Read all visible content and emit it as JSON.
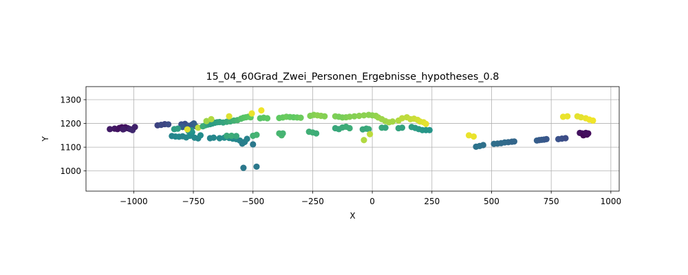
{
  "chart_data": {
    "type": "scatter",
    "title": "15_04_60Grad_Zwei_Personen_Ergebnisse_hypotheses_0.8",
    "xlabel": "X",
    "ylabel": "Y",
    "xlim": [
      -1200,
      1035
    ],
    "ylim": [
      915,
      1355
    ],
    "xticks": [
      -1000,
      -750,
      -500,
      -250,
      0,
      250,
      500,
      750,
      1000
    ],
    "xtick_labels": [
      "−1000",
      "−750",
      "−500",
      "−250",
      "0",
      "250",
      "500",
      "750",
      "1000"
    ],
    "yticks": [
      1000,
      1100,
      1200,
      1300
    ],
    "ytick_labels": [
      "1000",
      "1100",
      "1200",
      "1300"
    ],
    "grid": true,
    "colormap": "viridis",
    "colormap_stops": [
      "#440154",
      "#3b528b",
      "#21918c",
      "#5ec962",
      "#fde725"
    ],
    "points": [
      {
        "x": -1100,
        "y": 1176,
        "c": 0.08
      },
      {
        "x": -1080,
        "y": 1178,
        "c": 0.07
      },
      {
        "x": -1068,
        "y": 1176,
        "c": 0.06
      },
      {
        "x": -1060,
        "y": 1181,
        "c": 0.05
      },
      {
        "x": -1050,
        "y": 1184,
        "c": 0.04
      },
      {
        "x": -1042,
        "y": 1176,
        "c": 0.06
      },
      {
        "x": -1035,
        "y": 1184,
        "c": 0.05
      },
      {
        "x": -1025,
        "y": 1180,
        "c": 0.07
      },
      {
        "x": -1015,
        "y": 1176,
        "c": 0.1
      },
      {
        "x": -1005,
        "y": 1172,
        "c": 0.12
      },
      {
        "x": -995,
        "y": 1185,
        "c": 0.1
      },
      {
        "x": -1045,
        "y": 1175,
        "c": 0.09
      },
      {
        "x": -900,
        "y": 1192,
        "c": 0.2
      },
      {
        "x": -885,
        "y": 1194,
        "c": 0.22
      },
      {
        "x": -870,
        "y": 1197,
        "c": 0.21
      },
      {
        "x": -855,
        "y": 1196,
        "c": 0.23
      },
      {
        "x": -800,
        "y": 1196,
        "c": 0.25
      },
      {
        "x": -785,
        "y": 1198,
        "c": 0.24
      },
      {
        "x": -770,
        "y": 1190,
        "c": 0.27
      },
      {
        "x": -755,
        "y": 1195,
        "c": 0.28
      },
      {
        "x": -748,
        "y": 1200,
        "c": 0.3
      },
      {
        "x": -740,
        "y": 1188,
        "c": 0.32
      },
      {
        "x": -795,
        "y": 1185,
        "c": 0.3
      },
      {
        "x": -840,
        "y": 1147,
        "c": 0.45
      },
      {
        "x": -825,
        "y": 1145,
        "c": 0.46
      },
      {
        "x": -810,
        "y": 1144,
        "c": 0.47
      },
      {
        "x": -795,
        "y": 1146,
        "c": 0.45
      },
      {
        "x": -780,
        "y": 1141,
        "c": 0.46
      },
      {
        "x": -765,
        "y": 1148,
        "c": 0.48
      },
      {
        "x": -755,
        "y": 1163,
        "c": 0.5
      },
      {
        "x": -745,
        "y": 1140,
        "c": 0.47
      },
      {
        "x": -730,
        "y": 1137,
        "c": 0.46
      },
      {
        "x": -720,
        "y": 1150,
        "c": 0.48
      },
      {
        "x": -770,
        "y": 1168,
        "c": 0.5
      },
      {
        "x": -760,
        "y": 1172,
        "c": 0.52
      },
      {
        "x": -830,
        "y": 1176,
        "c": 0.55
      },
      {
        "x": -815,
        "y": 1178,
        "c": 0.56
      },
      {
        "x": -775,
        "y": 1175,
        "c": 0.95
      },
      {
        "x": -730,
        "y": 1182,
        "c": 0.9
      },
      {
        "x": -710,
        "y": 1188,
        "c": 0.62
      },
      {
        "x": -700,
        "y": 1192,
        "c": 0.62
      },
      {
        "x": -690,
        "y": 1195,
        "c": 0.58
      },
      {
        "x": -680,
        "y": 1197,
        "c": 0.56
      },
      {
        "x": -670,
        "y": 1200,
        "c": 0.55
      },
      {
        "x": -660,
        "y": 1203,
        "c": 0.55
      },
      {
        "x": -650,
        "y": 1205,
        "c": 0.56
      },
      {
        "x": -640,
        "y": 1206,
        "c": 0.57
      },
      {
        "x": -625,
        "y": 1204,
        "c": 0.58
      },
      {
        "x": -610,
        "y": 1207,
        "c": 0.6
      },
      {
        "x": -595,
        "y": 1209,
        "c": 0.62
      },
      {
        "x": -580,
        "y": 1212,
        "c": 0.64
      },
      {
        "x": -565,
        "y": 1214,
        "c": 0.66
      },
      {
        "x": -550,
        "y": 1220,
        "c": 0.7
      },
      {
        "x": -540,
        "y": 1224,
        "c": 0.72
      },
      {
        "x": -530,
        "y": 1226,
        "c": 0.73
      },
      {
        "x": -520,
        "y": 1228,
        "c": 0.74
      },
      {
        "x": -510,
        "y": 1226,
        "c": 0.75
      },
      {
        "x": -695,
        "y": 1210,
        "c": 0.85
      },
      {
        "x": -675,
        "y": 1218,
        "c": 0.88
      },
      {
        "x": -600,
        "y": 1230,
        "c": 0.95
      },
      {
        "x": -505,
        "y": 1242,
        "c": 0.97
      },
      {
        "x": -465,
        "y": 1255,
        "c": 0.98
      },
      {
        "x": -680,
        "y": 1138,
        "c": 0.45
      },
      {
        "x": -665,
        "y": 1140,
        "c": 0.46
      },
      {
        "x": -640,
        "y": 1138,
        "c": 0.47
      },
      {
        "x": -620,
        "y": 1140,
        "c": 0.48
      },
      {
        "x": -600,
        "y": 1139,
        "c": 0.48
      },
      {
        "x": -585,
        "y": 1136,
        "c": 0.47
      },
      {
        "x": -570,
        "y": 1134,
        "c": 0.46
      },
      {
        "x": -555,
        "y": 1128,
        "c": 0.45
      },
      {
        "x": -545,
        "y": 1115,
        "c": 0.42
      },
      {
        "x": -535,
        "y": 1122,
        "c": 0.43
      },
      {
        "x": -525,
        "y": 1135,
        "c": 0.44
      },
      {
        "x": -500,
        "y": 1112,
        "c": 0.4
      },
      {
        "x": -540,
        "y": 1013,
        "c": 0.4
      },
      {
        "x": -485,
        "y": 1018,
        "c": 0.4
      },
      {
        "x": -610,
        "y": 1148,
        "c": 0.6
      },
      {
        "x": -590,
        "y": 1148,
        "c": 0.62
      },
      {
        "x": -570,
        "y": 1147,
        "c": 0.6
      },
      {
        "x": -500,
        "y": 1148,
        "c": 0.64
      },
      {
        "x": -485,
        "y": 1152,
        "c": 0.65
      },
      {
        "x": -390,
        "y": 1158,
        "c": 0.66
      },
      {
        "x": -380,
        "y": 1150,
        "c": 0.67
      },
      {
        "x": -375,
        "y": 1158,
        "c": 0.65
      },
      {
        "x": -470,
        "y": 1222,
        "c": 0.72
      },
      {
        "x": -455,
        "y": 1224,
        "c": 0.73
      },
      {
        "x": -440,
        "y": 1222,
        "c": 0.74
      },
      {
        "x": -390,
        "y": 1223,
        "c": 0.75
      },
      {
        "x": -375,
        "y": 1225,
        "c": 0.76
      },
      {
        "x": -360,
        "y": 1228,
        "c": 0.77
      },
      {
        "x": -345,
        "y": 1227,
        "c": 0.76
      },
      {
        "x": -330,
        "y": 1226,
        "c": 0.75
      },
      {
        "x": -315,
        "y": 1225,
        "c": 0.76
      },
      {
        "x": -300,
        "y": 1224,
        "c": 0.77
      },
      {
        "x": -260,
        "y": 1232,
        "c": 0.8
      },
      {
        "x": -245,
        "y": 1236,
        "c": 0.81
      },
      {
        "x": -230,
        "y": 1234,
        "c": 0.82
      },
      {
        "x": -215,
        "y": 1232,
        "c": 0.82
      },
      {
        "x": -200,
        "y": 1230,
        "c": 0.81
      },
      {
        "x": -155,
        "y": 1230,
        "c": 0.8
      },
      {
        "x": -140,
        "y": 1228,
        "c": 0.79
      },
      {
        "x": -125,
        "y": 1225,
        "c": 0.79
      },
      {
        "x": -110,
        "y": 1226,
        "c": 0.8
      },
      {
        "x": -95,
        "y": 1228,
        "c": 0.81
      },
      {
        "x": -75,
        "y": 1230,
        "c": 0.81
      },
      {
        "x": -55,
        "y": 1232,
        "c": 0.82
      },
      {
        "x": -35,
        "y": 1234,
        "c": 0.82
      },
      {
        "x": -15,
        "y": 1236,
        "c": 0.82
      },
      {
        "x": 0,
        "y": 1234,
        "c": 0.82
      },
      {
        "x": 15,
        "y": 1232,
        "c": 0.83
      },
      {
        "x": 25,
        "y": 1225,
        "c": 0.84
      },
      {
        "x": 40,
        "y": 1218,
        "c": 0.85
      },
      {
        "x": 55,
        "y": 1210,
        "c": 0.85
      },
      {
        "x": 70,
        "y": 1205,
        "c": 0.86
      },
      {
        "x": 85,
        "y": 1208,
        "c": 0.86
      },
      {
        "x": -265,
        "y": 1165,
        "c": 0.63
      },
      {
        "x": -250,
        "y": 1162,
        "c": 0.63
      },
      {
        "x": -235,
        "y": 1158,
        "c": 0.62
      },
      {
        "x": -155,
        "y": 1180,
        "c": 0.6
      },
      {
        "x": -140,
        "y": 1176,
        "c": 0.6
      },
      {
        "x": -125,
        "y": 1183,
        "c": 0.61
      },
      {
        "x": -110,
        "y": 1186,
        "c": 0.62
      },
      {
        "x": -95,
        "y": 1180,
        "c": 0.62
      },
      {
        "x": -40,
        "y": 1175,
        "c": 0.6
      },
      {
        "x": -25,
        "y": 1178,
        "c": 0.6
      },
      {
        "x": -15,
        "y": 1176,
        "c": 0.61
      },
      {
        "x": 40,
        "y": 1182,
        "c": 0.6
      },
      {
        "x": 55,
        "y": 1182,
        "c": 0.59
      },
      {
        "x": -35,
        "y": 1130,
        "c": 0.88
      },
      {
        "x": -10,
        "y": 1155,
        "c": 0.9
      },
      {
        "x": 110,
        "y": 1212,
        "c": 0.88
      },
      {
        "x": 125,
        "y": 1222,
        "c": 0.9
      },
      {
        "x": 145,
        "y": 1226,
        "c": 0.9
      },
      {
        "x": 160,
        "y": 1218,
        "c": 0.91
      },
      {
        "x": 175,
        "y": 1220,
        "c": 0.92
      },
      {
        "x": 190,
        "y": 1215,
        "c": 0.93
      },
      {
        "x": 200,
        "y": 1208,
        "c": 0.94
      },
      {
        "x": 215,
        "y": 1205,
        "c": 0.95
      },
      {
        "x": 225,
        "y": 1198,
        "c": 0.96
      },
      {
        "x": 110,
        "y": 1180,
        "c": 0.58
      },
      {
        "x": 125,
        "y": 1182,
        "c": 0.57
      },
      {
        "x": 165,
        "y": 1185,
        "c": 0.56
      },
      {
        "x": 180,
        "y": 1181,
        "c": 0.55
      },
      {
        "x": 195,
        "y": 1176,
        "c": 0.54
      },
      {
        "x": 210,
        "y": 1172,
        "c": 0.53
      },
      {
        "x": 225,
        "y": 1172,
        "c": 0.52
      },
      {
        "x": 240,
        "y": 1172,
        "c": 0.52
      },
      {
        "x": 405,
        "y": 1150,
        "c": 0.97
      },
      {
        "x": 425,
        "y": 1145,
        "c": 0.97
      },
      {
        "x": 435,
        "y": 1102,
        "c": 0.38
      },
      {
        "x": 450,
        "y": 1105,
        "c": 0.38
      },
      {
        "x": 465,
        "y": 1109,
        "c": 0.37
      },
      {
        "x": 510,
        "y": 1114,
        "c": 0.36
      },
      {
        "x": 525,
        "y": 1115,
        "c": 0.36
      },
      {
        "x": 540,
        "y": 1117,
        "c": 0.35
      },
      {
        "x": 555,
        "y": 1120,
        "c": 0.35
      },
      {
        "x": 570,
        "y": 1121,
        "c": 0.34
      },
      {
        "x": 585,
        "y": 1123,
        "c": 0.33
      },
      {
        "x": 595,
        "y": 1124,
        "c": 0.33
      },
      {
        "x": 690,
        "y": 1128,
        "c": 0.3
      },
      {
        "x": 700,
        "y": 1130,
        "c": 0.29
      },
      {
        "x": 710,
        "y": 1131,
        "c": 0.28
      },
      {
        "x": 720,
        "y": 1132,
        "c": 0.28
      },
      {
        "x": 730,
        "y": 1134,
        "c": 0.27
      },
      {
        "x": 780,
        "y": 1134,
        "c": 0.25
      },
      {
        "x": 795,
        "y": 1136,
        "c": 0.24
      },
      {
        "x": 810,
        "y": 1138,
        "c": 0.23
      },
      {
        "x": 800,
        "y": 1228,
        "c": 0.97
      },
      {
        "x": 818,
        "y": 1230,
        "c": 0.97
      },
      {
        "x": 860,
        "y": 1230,
        "c": 0.96
      },
      {
        "x": 875,
        "y": 1226,
        "c": 0.96
      },
      {
        "x": 895,
        "y": 1222,
        "c": 0.97
      },
      {
        "x": 910,
        "y": 1216,
        "c": 0.98
      },
      {
        "x": 925,
        "y": 1212,
        "c": 0.98
      },
      {
        "x": 870,
        "y": 1160,
        "c": 0.05
      },
      {
        "x": 880,
        "y": 1158,
        "c": 0.04
      },
      {
        "x": 890,
        "y": 1154,
        "c": 0.03
      },
      {
        "x": 900,
        "y": 1153,
        "c": 0.02
      },
      {
        "x": 905,
        "y": 1158,
        "c": 0.03
      },
      {
        "x": 885,
        "y": 1150,
        "c": 0.02
      },
      {
        "x": 895,
        "y": 1160,
        "c": 0.04
      }
    ]
  }
}
